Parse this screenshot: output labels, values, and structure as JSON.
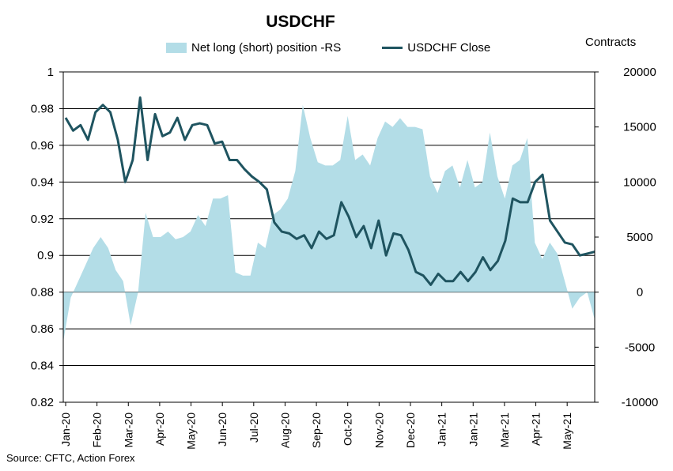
{
  "chart_data": {
    "type": "line",
    "title": "USDCHF",
    "y_left_range": [
      0.82,
      1
    ],
    "y_left_ticks": [
      "0.82",
      "0.84",
      "0.86",
      "0.88",
      "0.9",
      "0.92",
      "0.94",
      "0.96",
      "0.98",
      "1"
    ],
    "y_right_range": [
      -10000,
      20000
    ],
    "y_right_ticks": [
      "-10000",
      "-5000",
      "0",
      "5000",
      "10000",
      "15000",
      "20000"
    ],
    "y_right_label": "Contracts",
    "x_tick_labels": [
      "Jan-20",
      "Feb-20",
      "Mar-20",
      "Apr-20",
      "May-20",
      "Jun-20",
      "Jul-20",
      "Aug-20",
      "Sep-20",
      "Oct-20",
      "Nov-20",
      "Dec-20",
      "Jan-21",
      "Jan-21",
      "Mar-21",
      "Apr-21",
      "May-21"
    ],
    "grid": true,
    "legend_position": "top",
    "series": [
      {
        "name": "Net long (short) position -RS",
        "type": "area",
        "axis": "right",
        "color": "#b3dde7",
        "values": [
          -4500,
          -500,
          1000,
          2500,
          4000,
          5000,
          4000,
          2000,
          1000,
          -3000,
          0,
          7200,
          5000,
          5000,
          5500,
          4800,
          5000,
          5500,
          7000,
          6000,
          8500,
          8500,
          8800,
          1800,
          1500,
          1500,
          4500,
          4000,
          7000,
          7500,
          8500,
          11000,
          17000,
          14000,
          11800,
          11500,
          11500,
          12000,
          16000,
          12000,
          12500,
          11500,
          14000,
          15500,
          15000,
          15800,
          15000,
          15000,
          14800,
          10500,
          9000,
          11000,
          11500,
          9500,
          12000,
          9500,
          10000,
          14500,
          10500,
          8500,
          11500,
          12000,
          14000,
          4500,
          3000,
          4500,
          3500,
          1000,
          -1500,
          -500,
          0,
          -2500
        ]
      },
      {
        "name": "USDCHF Close",
        "type": "line",
        "axis": "left",
        "color": "#1f5460",
        "values": [
          0.975,
          0.968,
          0.971,
          0.963,
          0.978,
          0.982,
          0.978,
          0.963,
          0.94,
          0.952,
          0.986,
          0.952,
          0.977,
          0.965,
          0.967,
          0.975,
          0.963,
          0.971,
          0.972,
          0.971,
          0.961,
          0.962,
          0.952,
          0.952,
          0.947,
          0.943,
          0.94,
          0.936,
          0.918,
          0.913,
          0.912,
          0.909,
          0.911,
          0.904,
          0.913,
          0.909,
          0.911,
          0.929,
          0.921,
          0.91,
          0.916,
          0.904,
          0.919,
          0.9,
          0.912,
          0.911,
          0.903,
          0.891,
          0.889,
          0.884,
          0.89,
          0.886,
          0.886,
          0.891,
          0.886,
          0.891,
          0.899,
          0.892,
          0.897,
          0.908,
          0.931,
          0.929,
          0.929,
          0.94,
          0.944,
          0.919,
          0.913,
          0.907,
          0.906,
          0.9,
          0.901,
          0.902
        ]
      }
    ]
  },
  "legend": {
    "area_label": "Net long (short) position -RS",
    "line_label": "USDCHF Close"
  },
  "source": "Source: CFTC, Action Forex"
}
